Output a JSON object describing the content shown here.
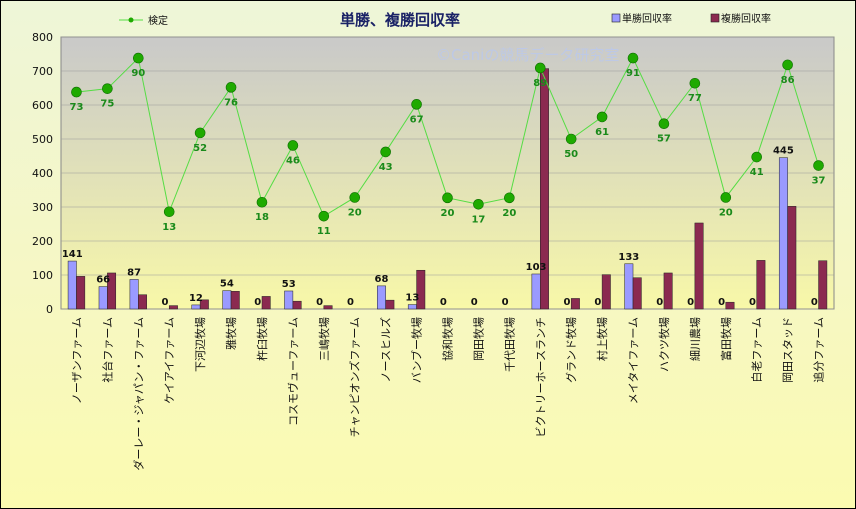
{
  "chart_data": {
    "type": "bar",
    "title": "単勝、複勝回収率",
    "watermark": "©Caniの競馬データ研究室",
    "ylim": [
      0,
      800
    ],
    "yticks": [
      0,
      100,
      200,
      300,
      400,
      500,
      600,
      700,
      800
    ],
    "grid": true,
    "legend_placement": "top",
    "colors": {
      "win": "#9a9aff",
      "place": "#8b2a50",
      "line": "#55dd44",
      "marker": "#1faa00",
      "plot_top": "#c9c9c9",
      "plot_bottom": "#f8f8a8"
    },
    "categories": [
      "ノーザンファーム",
      "社台ファーム",
      "ダーレー・ジャパン・ファーム",
      "ケイアイファーム",
      "下河辺牧場",
      "雅牧場",
      "杵臼牧場",
      "コスモヴューファーム",
      "三嶋牧場",
      "チャンピオンズファーム",
      "ノースヒルズ",
      "バンブー牧場",
      "協和牧場",
      "岡田牧場",
      "千代田牧場",
      "ビクトリーホースランチ",
      "グランド牧場",
      "村上牧場",
      "メイタイファーム",
      "ハクツ牧場",
      "細川農場",
      "富田牧場",
      "白老ファーム",
      "岡田スタッド",
      "追分ファーム"
    ],
    "series": [
      {
        "name": "単勝回収率",
        "type": "bar",
        "values": [
          141,
          66,
          87,
          0,
          12,
          54,
          0,
          53,
          0,
          0,
          68,
          13,
          0,
          0,
          0,
          103,
          0,
          0,
          133,
          0,
          0,
          0,
          0,
          445,
          0
        ]
      },
      {
        "name": "複勝回収率",
        "type": "bar",
        "values": [
          96,
          106,
          42,
          10,
          27,
          52,
          37,
          23,
          10,
          0,
          26,
          114,
          0,
          0,
          0,
          707,
          31,
          101,
          92,
          106,
          253,
          20,
          143,
          302,
          142
        ]
      },
      {
        "name": "検定",
        "type": "line",
        "values": [
          638,
          648,
          738,
          286,
          518,
          652,
          314,
          481,
          273,
          328,
          462,
          602,
          327,
          308,
          327,
          709,
          500,
          565,
          738,
          545,
          664,
          328,
          447,
          718,
          422
        ],
        "labels": [
          73,
          75,
          90,
          13,
          52,
          76,
          18,
          46,
          11,
          20,
          43,
          67,
          20,
          17,
          20,
          89,
          50,
          61,
          91,
          57,
          77,
          20,
          41,
          86,
          37
        ]
      }
    ]
  }
}
